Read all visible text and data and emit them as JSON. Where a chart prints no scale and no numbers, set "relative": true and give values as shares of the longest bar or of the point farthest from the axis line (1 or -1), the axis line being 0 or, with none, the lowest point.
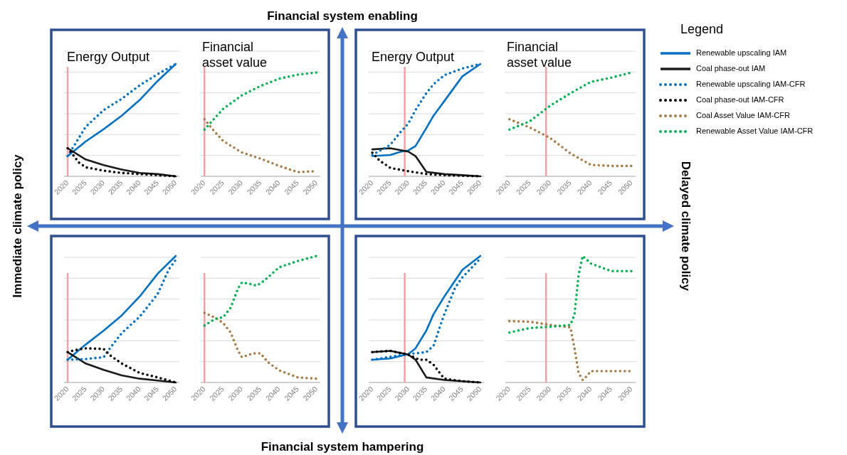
{
  "chart_data": [
    {
      "type": "line",
      "title": "Energy Output",
      "legend_title": "Legend",
      "legend": "right",
      "relative": true,
      "xlim": [
        2019,
        2051
      ],
      "xticks": [
        2020,
        2025,
        2030,
        2035,
        2040,
        2045,
        2050
      ],
      "grid": true,
      "ref_lines": [
        {
          "axis": "x",
          "value": 2020,
          "color": "#f4a0a0"
        }
      ],
      "series": [
        {
          "name": "Renewable upscaling IAM",
          "color": "#0070c0",
          "line_style": "solid",
          "x": [
            2020,
            2025,
            2030,
            2035,
            2040,
            2045,
            2050
          ],
          "values": [
            0.18,
            0.31,
            0.42,
            0.54,
            0.68,
            0.85,
            1
          ]
        },
        {
          "name": "Coal phase-out IAM",
          "color": "#1a1a1a",
          "line_style": "solid",
          "x": [
            2020,
            2025,
            2030,
            2035,
            2040,
            2045,
            2050
          ],
          "values": [
            0.25,
            0.15,
            0.1,
            0.06,
            0.03,
            0.02,
            0
          ]
        },
        {
          "name": "Renewable upscaling IAM-CFR",
          "color": "#0070c0",
          "line_style": "dotted",
          "x": [
            2020,
            2025,
            2030,
            2035,
            2040,
            2045,
            2050
          ],
          "values": [
            0.18,
            0.44,
            0.59,
            0.69,
            0.81,
            0.91,
            1
          ]
        },
        {
          "name": "Coal phase-out IAM-CFR",
          "color": "#000000",
          "line_style": "dotted",
          "x": [
            2020,
            2022,
            2023,
            2025,
            2030,
            2035,
            2040,
            2050
          ],
          "values": [
            0.25,
            0.17,
            0.125,
            0.08,
            0.05,
            0.03,
            0.02,
            0
          ]
        }
      ]
    },
    {
      "type": "line",
      "title": "Financial asset value",
      "legend": "right",
      "relative": true,
      "xlim": [
        2019,
        2051
      ],
      "xticks": [
        2020,
        2025,
        2030,
        2035,
        2040,
        2045,
        2050
      ],
      "grid": true,
      "ref_lines": [
        {
          "axis": "x",
          "value": 2020,
          "color": "#f4a0a0"
        }
      ],
      "series": [
        {
          "name": "Coal Asset Value IAM-CFR",
          "color": "#a87a46",
          "line_style": "dotted",
          "x": [
            2020,
            2022,
            2025,
            2030,
            2035,
            2040,
            2045,
            2050
          ],
          "values": [
            0.55,
            0.46,
            0.34,
            0.23,
            0.17,
            0.1,
            0.04,
            0.05
          ]
        },
        {
          "name": "Renewable Asset Value IAM-CFR",
          "color": "#00b050",
          "line_style": "dotted",
          "x": [
            2020,
            2022,
            2025,
            2030,
            2035,
            2040,
            2045,
            2050
          ],
          "values": [
            0.45,
            0.53,
            0.65,
            0.78,
            0.87,
            0.94,
            0.98,
            1
          ]
        }
      ]
    },
    {
      "type": "line",
      "title": "Energy Output",
      "relative": true,
      "xlim": [
        2019,
        2051
      ],
      "xticks": [
        2020,
        2025,
        2030,
        2035,
        2040,
        2045,
        2050
      ],
      "grid": true,
      "ref_lines": [
        {
          "axis": "x",
          "value": 2029,
          "color": "#f4a0a0"
        }
      ],
      "series": [
        {
          "color": "#0070c0",
          "line_style": "solid",
          "x": [
            2020,
            2025,
            2028,
            2030,
            2032,
            2035,
            2037,
            2040,
            2045,
            2050
          ],
          "values": [
            0.18,
            0.19,
            0.22,
            0.23,
            0.27,
            0.43,
            0.54,
            0.67,
            0.89,
            1
          ]
        },
        {
          "color": "#1a1a1a",
          "line_style": "solid",
          "x": [
            2020,
            2025,
            2030,
            2032,
            2035,
            2040,
            2045,
            2050
          ],
          "values": [
            0.24,
            0.25,
            0.22,
            0.18,
            0.04,
            0.02,
            0.01,
            0
          ]
        },
        {
          "color": "#0070c0",
          "line_style": "dotted",
          "x": [
            2020,
            2025,
            2028,
            2030,
            2032,
            2035,
            2037,
            2040,
            2045,
            2050
          ],
          "values": [
            0.19,
            0.28,
            0.4,
            0.47,
            0.59,
            0.74,
            0.82,
            0.9,
            0.96,
            1
          ]
        },
        {
          "color": "#000000",
          "line_style": "dotted",
          "x": [
            2020,
            2022,
            2025,
            2030,
            2035,
            2040,
            2050
          ],
          "values": [
            0.21,
            0.14,
            0.075,
            0.045,
            0.02,
            0.01,
            0
          ]
        }
      ]
    },
    {
      "type": "line",
      "title": "Financial asset value",
      "relative": true,
      "xlim": [
        2019,
        2051
      ],
      "xticks": [
        2020,
        2025,
        2030,
        2035,
        2040,
        2045,
        2050
      ],
      "grid": true,
      "ref_lines": [
        {
          "axis": "x",
          "value": 2029,
          "color": "#f4a0a0"
        }
      ],
      "series": [
        {
          "color": "#a87a46",
          "line_style": "dotted",
          "x": [
            2020,
            2025,
            2030,
            2035,
            2040,
            2045,
            2050
          ],
          "values": [
            0.55,
            0.47,
            0.37,
            0.22,
            0.11,
            0.1,
            0.1
          ]
        },
        {
          "color": "#00b050",
          "line_style": "dotted",
          "x": [
            2020,
            2025,
            2030,
            2035,
            2040,
            2045,
            2050
          ],
          "values": [
            0.45,
            0.53,
            0.68,
            0.8,
            0.91,
            0.95,
            1
          ]
        }
      ]
    },
    {
      "type": "line",
      "relative": true,
      "xlim": [
        2019,
        2051
      ],
      "xticks": [
        2020,
        2025,
        2030,
        2035,
        2040,
        2045,
        2050
      ],
      "grid": true,
      "ref_lines": [
        {
          "axis": "x",
          "value": 2020,
          "color": "#f4a0a0"
        }
      ],
      "series": [
        {
          "color": "#0070c0",
          "line_style": "solid",
          "x": [
            2020,
            2025,
            2030,
            2035,
            2040,
            2045,
            2050
          ],
          "values": [
            0.18,
            0.3,
            0.41,
            0.53,
            0.68,
            0.86,
            1
          ]
        },
        {
          "color": "#1a1a1a",
          "line_style": "solid",
          "x": [
            2020,
            2025,
            2030,
            2035,
            2040,
            2045,
            2050
          ],
          "values": [
            0.24,
            0.15,
            0.1,
            0.056,
            0.03,
            0.015,
            0
          ]
        },
        {
          "color": "#0070c0",
          "line_style": "dotted",
          "x": [
            2020,
            2025,
            2030,
            2032,
            2035,
            2040,
            2045,
            2048,
            2050
          ],
          "values": [
            0.18,
            0.185,
            0.2,
            0.28,
            0.39,
            0.52,
            0.7,
            0.89,
            0.97
          ]
        },
        {
          "color": "#000000",
          "line_style": "dotted",
          "x": [
            2020,
            2022,
            2025,
            2030,
            2032,
            2035,
            2040,
            2045,
            2050
          ],
          "values": [
            0.24,
            0.255,
            0.27,
            0.265,
            0.21,
            0.15,
            0.075,
            0.04,
            0
          ]
        }
      ]
    },
    {
      "type": "line",
      "relative": true,
      "xlim": [
        2019,
        2051
      ],
      "xticks": [
        2020,
        2025,
        2030,
        2035,
        2040,
        2045,
        2050
      ],
      "grid": true,
      "ref_lines": [
        {
          "axis": "x",
          "value": 2020,
          "color": "#f4a0a0"
        }
      ],
      "series": [
        {
          "color": "#a87a46",
          "line_style": "dotted",
          "x": [
            2020,
            2023,
            2025,
            2027,
            2029,
            2030,
            2033,
            2035,
            2037,
            2040,
            2045,
            2050
          ],
          "values": [
            0.55,
            0.51,
            0.47,
            0.395,
            0.25,
            0.2,
            0.23,
            0.23,
            0.16,
            0.095,
            0.04,
            0.03
          ]
        },
        {
          "color": "#00b050",
          "line_style": "dotted",
          "x": [
            2020,
            2023,
            2025,
            2027,
            2029,
            2030,
            2032,
            2034,
            2036,
            2040,
            2045,
            2050
          ],
          "values": [
            0.45,
            0.505,
            0.515,
            0.59,
            0.745,
            0.79,
            0.78,
            0.765,
            0.805,
            0.91,
            0.96,
            1
          ]
        }
      ]
    },
    {
      "type": "line",
      "relative": true,
      "xlim": [
        2019,
        2051
      ],
      "xticks": [
        2020,
        2025,
        2030,
        2035,
        2040,
        2045,
        2050
      ],
      "grid": true,
      "ref_lines": [
        {
          "axis": "x",
          "value": 2029,
          "color": "#f4a0a0"
        }
      ],
      "series": [
        {
          "color": "#0070c0",
          "line_style": "solid",
          "x": [
            2020,
            2025,
            2030,
            2032,
            2035,
            2037,
            2040,
            2045,
            2050
          ],
          "values": [
            0.18,
            0.19,
            0.225,
            0.27,
            0.41,
            0.54,
            0.68,
            0.89,
            1
          ]
        },
        {
          "color": "#1a1a1a",
          "line_style": "solid",
          "x": [
            2020,
            2025,
            2030,
            2032,
            2035,
            2040,
            2045,
            2050
          ],
          "values": [
            0.24,
            0.25,
            0.22,
            0.18,
            0.04,
            0.02,
            0.01,
            0
          ]
        },
        {
          "color": "#0070c0",
          "line_style": "dotted",
          "x": [
            2020,
            2030,
            2032,
            2035,
            2037,
            2039,
            2040,
            2043,
            2045,
            2050
          ],
          "values": [
            0.18,
            0.225,
            0.23,
            0.24,
            0.29,
            0.46,
            0.54,
            0.75,
            0.83,
            0.98
          ]
        },
        {
          "color": "#000000",
          "line_style": "dotted",
          "x": [
            2020,
            2025,
            2030,
            2033,
            2035,
            2037,
            2039,
            2040,
            2045,
            2050
          ],
          "values": [
            0.24,
            0.25,
            0.22,
            0.18,
            0.18,
            0.14,
            0.065,
            0.03,
            0.01,
            0
          ]
        }
      ]
    },
    {
      "type": "line",
      "relative": true,
      "xlim": [
        2019,
        2051
      ],
      "xticks": [
        2020,
        2025,
        2030,
        2035,
        2040,
        2045,
        2050
      ],
      "grid": true,
      "ref_lines": [
        {
          "axis": "x",
          "value": 2029,
          "color": "#f4a0a0"
        }
      ],
      "series": [
        {
          "color": "#a87a46",
          "line_style": "dotted",
          "x": [
            2020,
            2025,
            2030,
            2035,
            2036,
            2037,
            2038,
            2039,
            2040,
            2045,
            2050
          ],
          "values": [
            0.485,
            0.48,
            0.455,
            0.435,
            0.27,
            0.075,
            0.02,
            0.05,
            0.09,
            0.09,
            0.09
          ]
        },
        {
          "color": "#00b050",
          "line_style": "dotted",
          "x": [
            2020,
            2025,
            2030,
            2035,
            2036,
            2037,
            2038,
            2040,
            2045,
            2050
          ],
          "values": [
            0.395,
            0.43,
            0.44,
            0.455,
            0.54,
            0.85,
            1,
            0.94,
            0.88,
            0.88
          ]
        }
      ]
    },
    {
      "type": "other",
      "annotations": [
        "Financial system enabling",
        "Financial system hampering",
        "Immediate climate policy",
        "Delayed climate policy"
      ]
    }
  ]
}
